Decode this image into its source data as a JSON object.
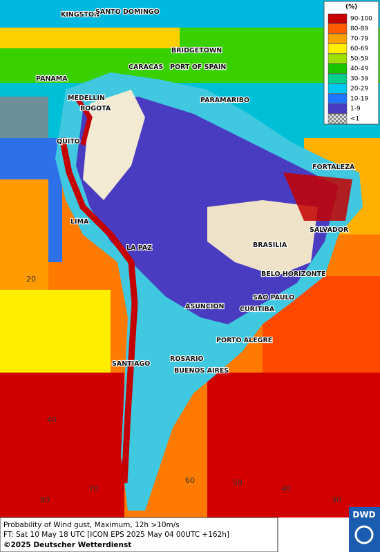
{
  "legend": {
    "title": "(%)",
    "items": [
      {
        "label": "90-100",
        "color": "#c40000"
      },
      {
        "label": "80-89",
        "color": "#ff5a00"
      },
      {
        "label": "70-79",
        "color": "#ffa200"
      },
      {
        "label": "60-69",
        "color": "#ffee00"
      },
      {
        "label": "50-59",
        "color": "#9be000"
      },
      {
        "label": "40-49",
        "color": "#19c400"
      },
      {
        "label": "30-39",
        "color": "#00d08c"
      },
      {
        "label": "20-29",
        "color": "#00c8f0"
      },
      {
        "label": "10-19",
        "color": "#1e78ff"
      },
      {
        "label": "1-9",
        "color": "#4a3cc0"
      },
      {
        "label": "<1",
        "color": "#b4b4b4"
      }
    ]
  },
  "cities": [
    "KINGSTON",
    "SANTO DOMINGO",
    "BRIDGETOWN",
    "CARACAS",
    "PORT OF SPAIN",
    "PANAMA",
    "MEDELLIN",
    "BOGOTA",
    "PARAMARIBO",
    "QUITO",
    "FORTALEZA",
    "LIMA",
    "SALVADOR",
    "LA PAZ",
    "BRASILIA",
    "BELO HORIZONTE",
    "SAO PAULO",
    "ASUNCION",
    "CURITIBA",
    "PORTO ALEGRE",
    "ROSARIO",
    "BUENOS AIRES",
    "SANTIAGO"
  ],
  "grid_labels": [
    "20",
    "40",
    "80",
    "70",
    "60",
    "50",
    "40",
    "30"
  ],
  "footer": {
    "line1": "Probability of Wind gust, Maximum, 12h >10m/s",
    "line2": "FT: Sat 10 May 18 UTC [ICON EPS 2025 May 04 00UTC +162h]",
    "copyright": "©2025 Deutscher Wetterdienst",
    "logo": "DWD"
  }
}
